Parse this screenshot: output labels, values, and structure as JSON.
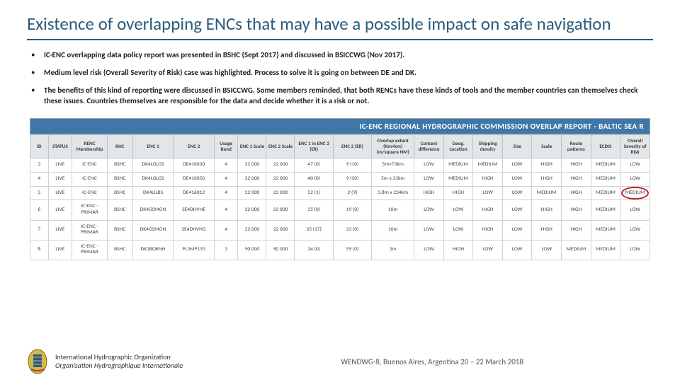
{
  "title": "Existence of overlapping ENCs that may have a possible impact on safe navigation",
  "bullets": [
    "IC-ENC overlapping data policy report was presented in BSHC (Sept 2017) and discussed in BSICCWG (Nov 2017).",
    "Medium level risk (Overall Severity of Risk) case was highlighted. Process to solve it is going on between DE and DK.",
    "The benefits of this kind of reporting were discussed in BSICCWG. Some members reminded, that both RENCs have these kinds of tools and the member countries can themselves check these issues. Countries themselves are responsible for the data and decide whether it is a risk or not."
  ],
  "bannerText": "IC-ENC REGIONAL HYDROGRAPHIC COMMISSION OVERLAP REPORT - BALTIC SEA R",
  "columns": [
    "ID",
    "STATUS",
    "RENC Membership",
    "RHC",
    "ENC 1",
    "ENC 2",
    "Usage Band",
    "ENC 1 Scale",
    "ENC 2 Scale",
    "ENC 1 in ENC 2 (ER)",
    "ENC 2 (ER)",
    "Overlap extent (Km×km) (m/square NM)",
    "Content difference",
    "Geog. Location",
    "Shipping density",
    "Size",
    "Scale",
    "Route patterns",
    "ECDIS",
    "Overall Severity of Risk"
  ],
  "rows": [
    {
      "id": "3",
      "status": "LIVE",
      "renc": "IC-ENC",
      "rhc": "BSHC",
      "enc1": "DK4LGLGS",
      "enc2": "DE416030",
      "band": "4",
      "s1": "22 000",
      "s2": "22 000",
      "er1": "47 (0)",
      "er2": "9 (10)",
      "ext": "5m×73km",
      "c": "LOW",
      "g": "MEDIUM",
      "sd": "MEDIUM",
      "sz": "LOW",
      "sc": "HIGH",
      "rp": "HIGH",
      "ec": "MEDIUM",
      "sev": "LOW",
      "hi": false
    },
    {
      "id": "4",
      "status": "LIVE",
      "renc": "IC-ENC",
      "rhc": "BSHC",
      "enc1": "DK4LGLGS",
      "enc2": "DE416050",
      "band": "4",
      "s1": "22 000",
      "s2": "22 000",
      "er1": "40 (0)",
      "er2": "9 (30)",
      "ext": "5m x 23km",
      "c": "LOW",
      "g": "MEDIUM",
      "sd": "HIGH",
      "sz": "LOW",
      "sc": "HIGH",
      "rp": "HIGH",
      "ec": "MEDIUM",
      "sev": "LOW",
      "hi": false
    },
    {
      "id": "5",
      "status": "LIVE",
      "renc": "IC-ENC",
      "rhc": "BSHC",
      "enc1": "DK4LILBS",
      "enc2": "DE416012",
      "band": "4",
      "s1": "22 000",
      "s2": "22 000",
      "er1": "52 (1)",
      "er2": "2 (9)",
      "ext": "3.8m x 234km",
      "c": "HIGH",
      "g": "HIGH",
      "sd": "LOW",
      "sz": "LOW",
      "sc": "MEDIUM",
      "rp": "HIGH",
      "ec": "MEDIUM",
      "sev": "MEDIUM",
      "hi": true
    },
    {
      "id": "6",
      "status": "LIVE",
      "renc": "IC-ENC - PRIMAR",
      "rhc": "BSHC",
      "enc1": "DK4GSMON",
      "enc2": "SE4DHVHE",
      "band": "4",
      "s1": "22 000",
      "s2": "22 000",
      "er1": "35 (0)",
      "er2": "19 (0)",
      "ext": "10m",
      "c": "LOW",
      "g": "LOW",
      "sd": "HIGH",
      "sz": "LOW",
      "sc": "HIGH",
      "rp": "HIGH",
      "ec": "MEDIUM",
      "sev": "LOW",
      "hi": false
    },
    {
      "id": "7",
      "status": "LIVE",
      "renc": "IC-ENC - PRIMAR",
      "rhc": "BSHC",
      "enc1": "DK4GSMON",
      "enc2": "SE4DHVHG",
      "band": "4",
      "s1": "22 000",
      "s2": "22 000",
      "er1": "35 (17)",
      "er2": "23 (0)",
      "ext": "10m",
      "c": "LOW",
      "g": "LOW",
      "sd": "HIGH",
      "sz": "LOW",
      "sc": "HIGH",
      "rp": "HIGH",
      "ec": "MEDIUM",
      "sev": "LOW",
      "hi": false
    },
    {
      "id": "8",
      "status": "LIVE",
      "renc": "IC-ENC - PRIMAR",
      "rhc": "BSHC",
      "enc1": "DK3BORNH",
      "enc2": "PL3MP153",
      "band": "3",
      "s1": "90 000",
      "s2": "90 000",
      "er1": "34 (0)",
      "er2": "59 (0)",
      "ext": "3m",
      "c": "LOW",
      "g": "HIGH",
      "sd": "LOW",
      "sz": "LOW",
      "sc": "LOW",
      "rp": "MEDIUM",
      "ec": "MEDIUM",
      "sev": "LOW",
      "hi": false
    }
  ],
  "footer": {
    "org_en": "International Hydrographic Organization",
    "org_fr": "Organisation Hydrographique Internationale",
    "meeting": "WENDWG-8, Buenos Aires, Argentina 20 – 22 March 2018"
  }
}
